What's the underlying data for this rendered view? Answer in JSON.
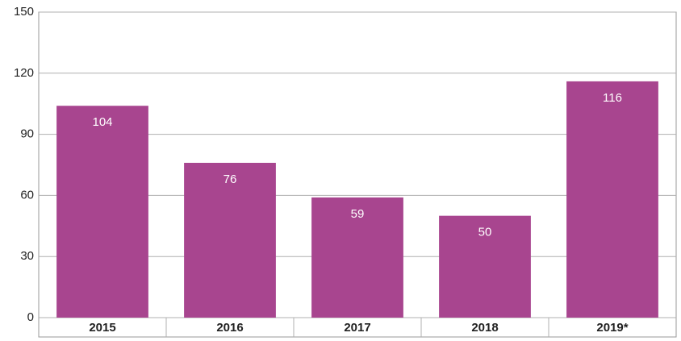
{
  "chart_data": {
    "type": "bar",
    "categories": [
      "2015",
      "2016",
      "2017",
      "2018",
      "2019*"
    ],
    "values": [
      104,
      76,
      59,
      50,
      116
    ],
    "color": "#a8458f",
    "ylim": [
      0,
      150
    ],
    "yticks": [
      0,
      30,
      60,
      90,
      120,
      150
    ],
    "grid": true
  }
}
